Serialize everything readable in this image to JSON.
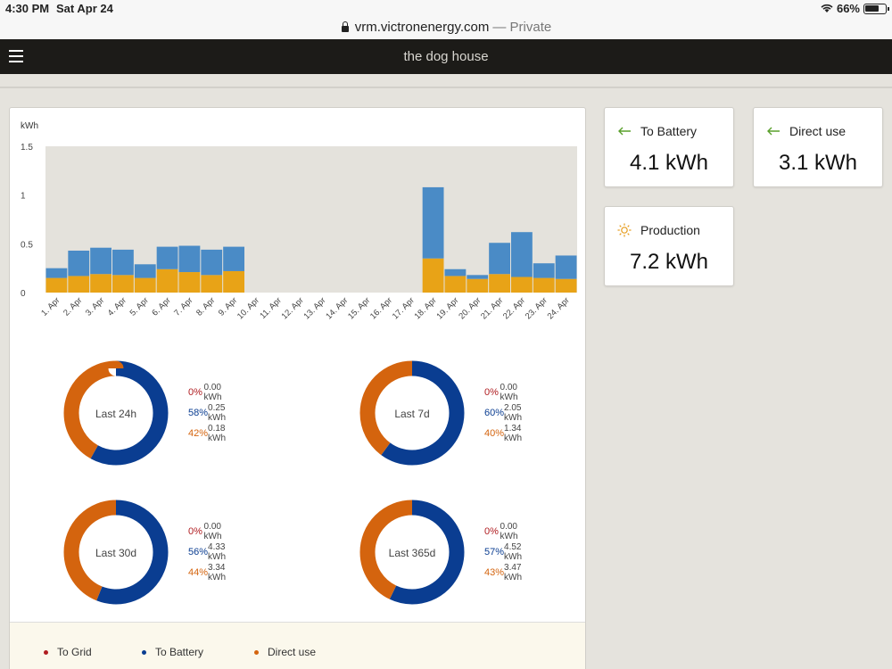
{
  "status_bar": {
    "time": "4:30 PM",
    "date": "Sat Apr 24",
    "battery": "66%"
  },
  "browser": {
    "url": "vrm.victronenergy.com",
    "mode": "— Private"
  },
  "app": {
    "title": "the dog house"
  },
  "colors": {
    "grid": "#b01d21",
    "battery": "#0a3d91",
    "direct": "#d4640e",
    "bar_battery": "#4a8bc6",
    "bar_direct": "#e8a317"
  },
  "chart_data": {
    "type": "bar",
    "stacked": true,
    "ylabel": "kWh",
    "ylim": [
      0,
      1.5
    ],
    "yticks": [
      "1.5",
      "1",
      "0.5",
      "0"
    ],
    "categories": [
      "1. Apr",
      "2. Apr",
      "3. Apr",
      "4. Apr",
      "5. Apr",
      "6. Apr",
      "7. Apr",
      "8. Apr",
      "9. Apr",
      "10. Apr",
      "11. Apr",
      "12. Apr",
      "13. Apr",
      "14. Apr",
      "15. Apr",
      "16. Apr",
      "17. Apr",
      "18. Apr",
      "19. Apr",
      "20. Apr",
      "21. Apr",
      "22. Apr",
      "23. Apr",
      "24. Apr"
    ],
    "series": [
      {
        "key": "direct",
        "values": [
          0.15,
          0.17,
          0.19,
          0.18,
          0.15,
          0.24,
          0.21,
          0.18,
          0.22,
          0,
          0,
          0,
          0,
          0,
          0,
          0,
          0,
          0.35,
          0.17,
          0.14,
          0.19,
          0.16,
          0.15,
          0.14
        ]
      },
      {
        "key": "battery",
        "values": [
          0.1,
          0.26,
          0.27,
          0.26,
          0.14,
          0.23,
          0.27,
          0.26,
          0.25,
          0,
          0,
          0,
          0,
          0,
          0,
          0,
          0,
          0.73,
          0.07,
          0.04,
          0.32,
          0.46,
          0.15,
          0.24
        ]
      }
    ]
  },
  "donuts": [
    {
      "label": "Last 24h",
      "rows": [
        {
          "pct": "0%",
          "val": "0.00 kWh"
        },
        {
          "pct": "58%",
          "val": "0.25 kWh"
        },
        {
          "pct": "42%",
          "val": "0.18 kWh"
        }
      ],
      "split": [
        0,
        0.58,
        0.42
      ]
    },
    {
      "label": "Last 7d",
      "rows": [
        {
          "pct": "0%",
          "val": "0.00 kWh"
        },
        {
          "pct": "60%",
          "val": "2.05 kWh"
        },
        {
          "pct": "40%",
          "val": "1.34 kWh"
        }
      ],
      "split": [
        0,
        0.6,
        0.4
      ]
    },
    {
      "label": "Last 30d",
      "rows": [
        {
          "pct": "0%",
          "val": "0.00 kWh"
        },
        {
          "pct": "56%",
          "val": "4.33 kWh"
        },
        {
          "pct": "44%",
          "val": "3.34 kWh"
        }
      ],
      "split": [
        0,
        0.56,
        0.44
      ]
    },
    {
      "label": "Last 365d",
      "rows": [
        {
          "pct": "0%",
          "val": "0.00 kWh"
        },
        {
          "pct": "57%",
          "val": "4.52 kWh"
        },
        {
          "pct": "43%",
          "val": "3.47 kWh"
        }
      ],
      "split": [
        0,
        0.57,
        0.43
      ]
    }
  ],
  "legend": {
    "grid": "To Grid",
    "battery": "To Battery",
    "direct": "Direct use"
  },
  "tiles": {
    "to_battery": {
      "label": "To Battery",
      "value": "4.1 kWh"
    },
    "direct_use": {
      "label": "Direct use",
      "value": "3.1 kWh"
    },
    "production": {
      "label": "Production",
      "value": "7.2 kWh"
    }
  }
}
